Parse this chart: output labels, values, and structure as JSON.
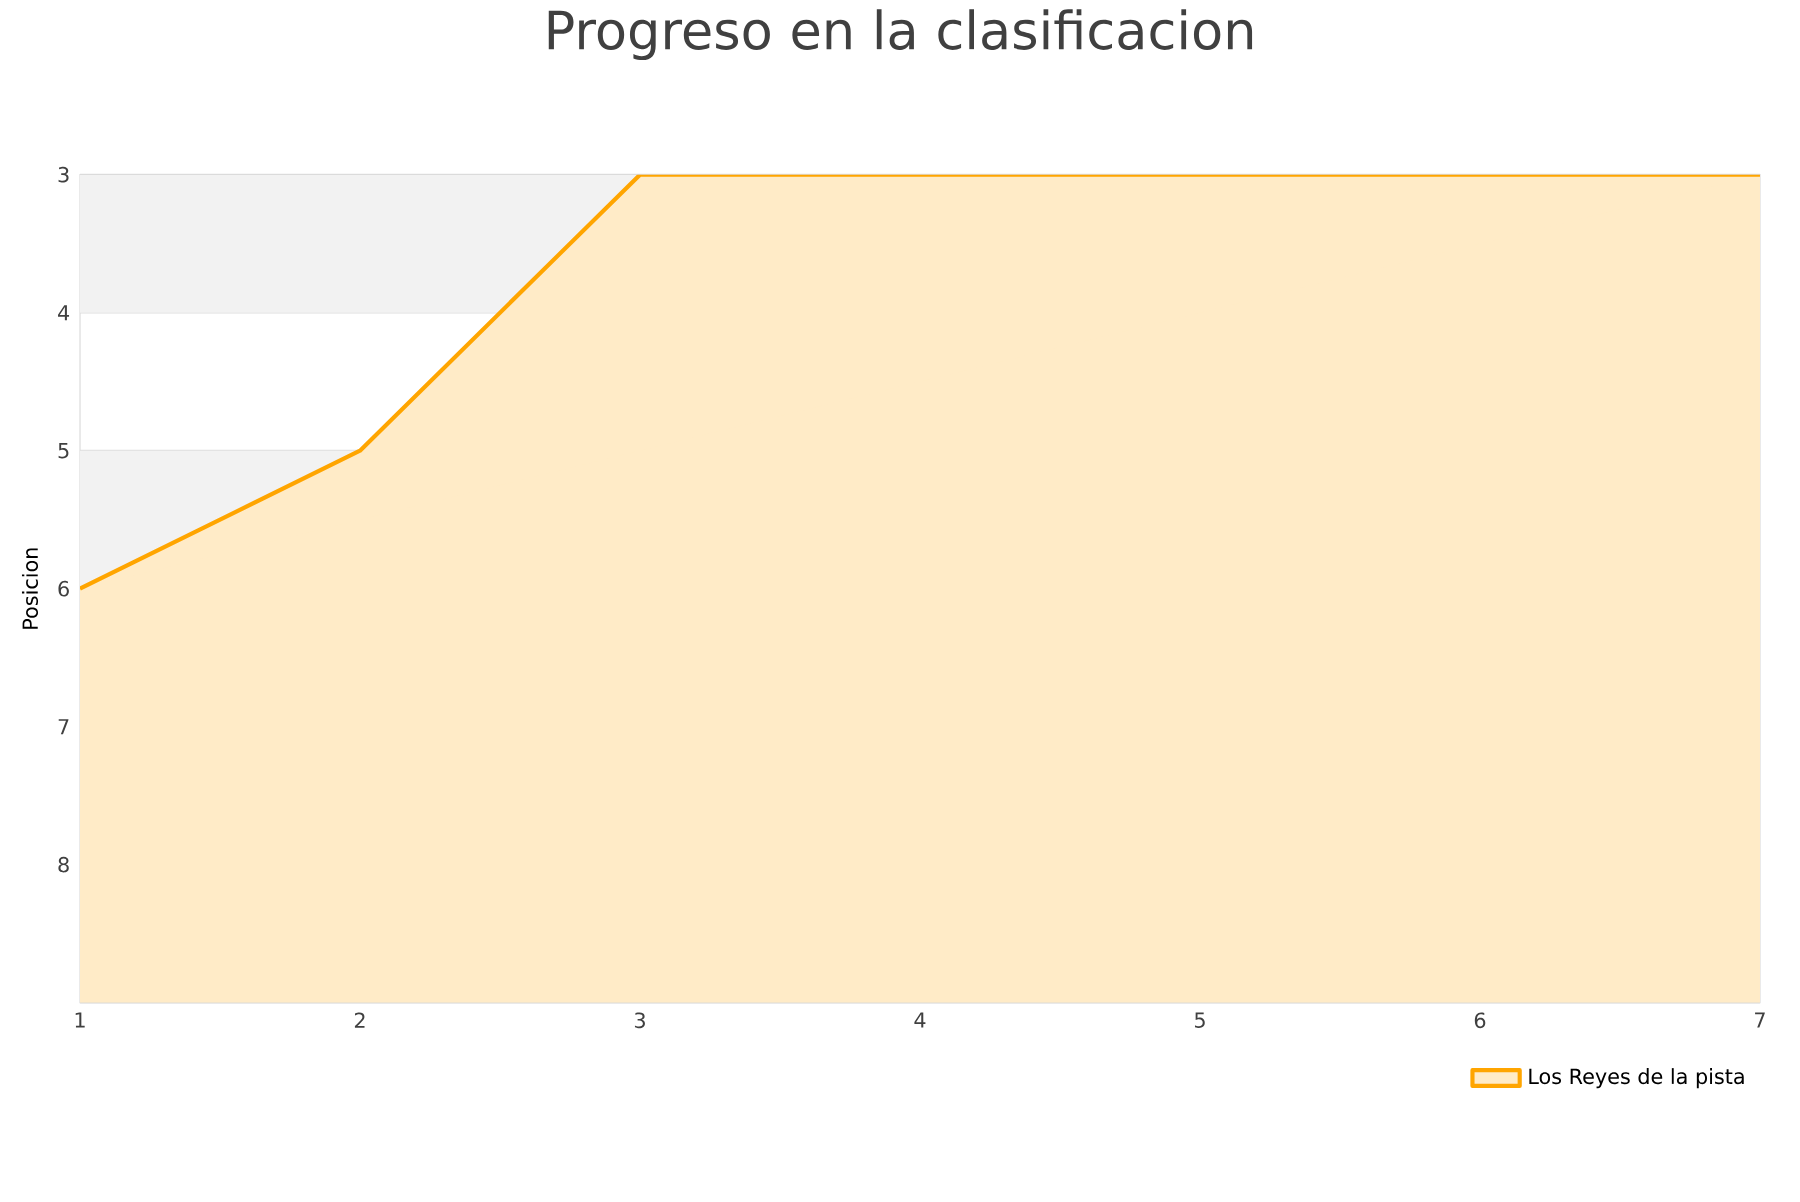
{
  "chart_data": {
    "type": "area",
    "title": "Progreso en la clasificacion",
    "ylabel": "Posicion",
    "x": [
      1,
      2,
      3,
      4,
      5,
      6,
      7
    ],
    "series": [
      {
        "name": "Los Reyes de la pista",
        "color": "#ffa500",
        "values": [
          6,
          5,
          3,
          3,
          3,
          3,
          3
        ]
      }
    ],
    "xlim": [
      1,
      7
    ],
    "xticks": [
      1,
      2,
      3,
      4,
      5,
      6,
      7
    ],
    "ylim": [
      9,
      3
    ],
    "yticks": [
      3,
      4,
      5,
      6,
      7,
      8,
      {
        "value": 9,
        "label": null
      }
    ],
    "grid": "y",
    "legend": "bottom right"
  }
}
